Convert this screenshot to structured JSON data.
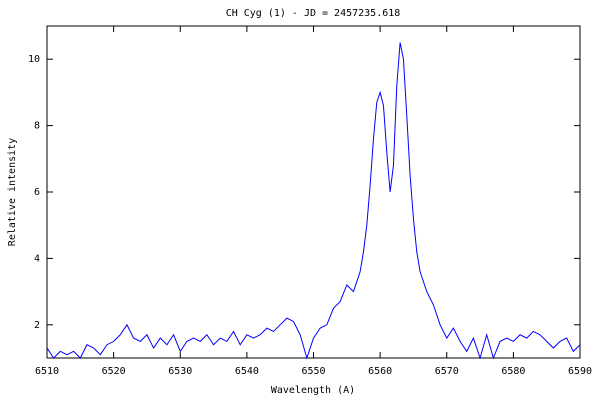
{
  "chart_data": {
    "type": "line",
    "title": "CH Cyg (1) - JD = 2457235.618",
    "xlabel": "Wavelength (A)",
    "ylabel": "Relative intensity",
    "xlim": [
      6510,
      6590
    ],
    "xticks": [
      6510,
      6520,
      6530,
      6540,
      6550,
      6560,
      6570,
      6580,
      6590
    ],
    "ylim": [
      1,
      11
    ],
    "yticks": [
      2,
      4,
      6,
      8,
      10
    ],
    "color": "#0000ff",
    "x": [
      6510,
      6511,
      6512,
      6513,
      6514,
      6515,
      6516,
      6517,
      6518,
      6519,
      6520,
      6521,
      6522,
      6523,
      6524,
      6525,
      6526,
      6527,
      6528,
      6529,
      6530,
      6531,
      6532,
      6533,
      6534,
      6535,
      6536,
      6537,
      6538,
      6539,
      6540,
      6541,
      6542,
      6543,
      6544,
      6545,
      6546,
      6547,
      6548,
      6549,
      6550,
      6551,
      6552,
      6553,
      6554,
      6555,
      6556,
      6557,
      6557.5,
      6558,
      6558.5,
      6559,
      6559.5,
      6560,
      6560.5,
      6561,
      6561.5,
      6562,
      6562.5,
      6563,
      6563.5,
      6564,
      6564.5,
      6565,
      6565.5,
      6566,
      6567,
      6568,
      6569,
      6570,
      6571,
      6572,
      6573,
      6574,
      6575,
      6576,
      6577,
      6578,
      6579,
      6580,
      6581,
      6582,
      6583,
      6584,
      6585,
      6586,
      6587,
      6588,
      6589,
      6590
    ],
    "values": [
      1.3,
      1.0,
      1.2,
      1.1,
      1.2,
      1.0,
      1.4,
      1.3,
      1.1,
      1.4,
      1.5,
      1.7,
      2.0,
      1.6,
      1.5,
      1.7,
      1.3,
      1.6,
      1.4,
      1.7,
      1.2,
      1.5,
      1.6,
      1.5,
      1.7,
      1.4,
      1.6,
      1.5,
      1.8,
      1.4,
      1.7,
      1.6,
      1.7,
      1.9,
      1.8,
      2.0,
      2.2,
      2.1,
      1.7,
      1.0,
      1.6,
      1.9,
      2.0,
      2.5,
      2.7,
      3.2,
      3.0,
      3.6,
      4.2,
      5.0,
      6.2,
      7.6,
      8.7,
      9.0,
      8.6,
      7.2,
      6.0,
      6.8,
      9.2,
      10.5,
      10.0,
      8.3,
      6.5,
      5.2,
      4.2,
      3.6,
      3.0,
      2.6,
      2.0,
      1.6,
      1.9,
      1.5,
      1.2,
      1.6,
      1.0,
      1.7,
      1.0,
      1.5,
      1.6,
      1.5,
      1.7,
      1.6,
      1.8,
      1.7,
      1.5,
      1.3,
      1.5,
      1.6,
      1.2,
      1.4
    ]
  }
}
